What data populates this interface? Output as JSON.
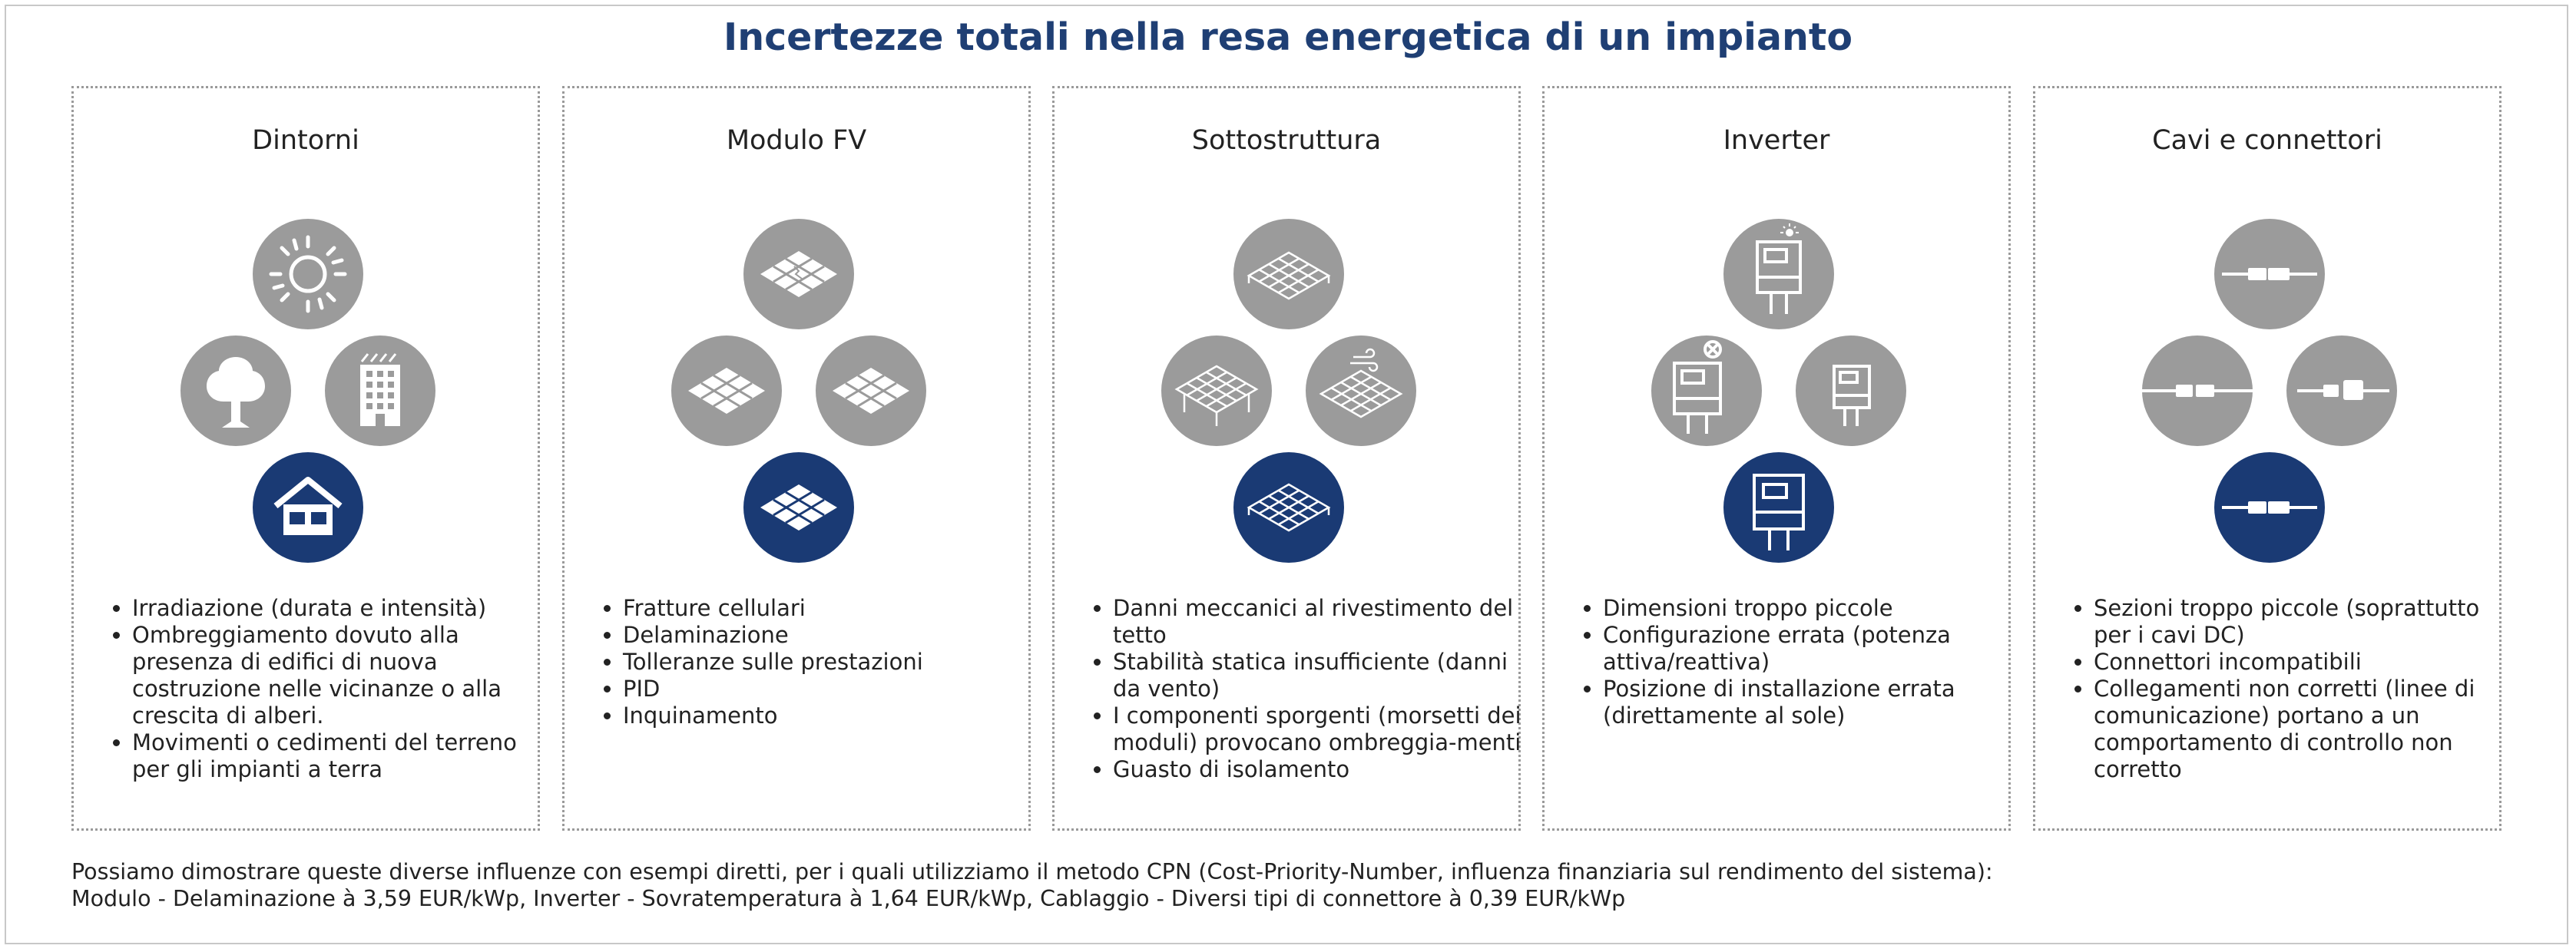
{
  "title": "Incertezze totali nella resa energetica di un impianto",
  "panels": [
    {
      "title": "Dintorni",
      "icons": [
        "sun-icon",
        "tree-icon",
        "building-icon",
        "house-icon"
      ],
      "items": [
        "Irradiazione (durata e intensità)",
        "Ombreggiamento dovuto alla presenza di edifici di nuova costruzione nelle vicinanze o alla crescita di alberi.",
        "Movimenti o cedimenti del terreno per gli impianti a terra"
      ]
    },
    {
      "title": "Modulo FV",
      "icons": [
        "pv-module-fracture-icon",
        "pv-module-delamination-icon",
        "pv-module-tolerance-icon",
        "pv-module-icon"
      ],
      "items": [
        "Fratture cellulari",
        "Delaminazione",
        "Tolleranze sulle prestazioni",
        "PID",
        "Inquinamento"
      ]
    },
    {
      "title": "Sottostruttura",
      "icons": [
        "mounting-structure-roof-icon",
        "mounting-structure-ground-icon",
        "mounting-structure-wind-icon",
        "mounting-structure-icon"
      ],
      "items": [
        "Danni meccanici al rivestimento del tetto",
        "Stabilità statica insufficiente (danni da vento)",
        "I componenti sporgenti (morsetti dei moduli) provocano ombreggia-menti",
        "Guasto di isolamento"
      ]
    },
    {
      "title": "Inverter",
      "icons": [
        "inverter-sun-icon",
        "inverter-error-icon",
        "inverter-small-icon",
        "inverter-icon"
      ],
      "items": [
        "Dimensioni troppo piccole",
        "Configurazione errata (potenza attiva/reattiva)",
        "Posizione di installazione errata (direttamente al sole)"
      ]
    },
    {
      "title": "Cavi e connettori",
      "icons": [
        "connector-icon",
        "connector-mismatch-icon",
        "connector-plug-icon",
        "connector-blue-icon"
      ],
      "items": [
        "Sezioni troppo piccole (soprattutto per i cavi DC)",
        "Connettori incompatibili",
        "Collegamenti non corretti (linee di comunicazione) portano a un comportamento di controllo non corretto"
      ]
    }
  ],
  "footer": {
    "line1": "Possiamo dimostrare queste diverse influenze con esempi diretti, per i quali utilizziamo il metodo CPN (Cost-Priority-Number, influenza finanziaria sul rendimento del sistema):",
    "line2": "Modulo - Delaminazione à 3,59 EUR/kWp, Inverter - Sovratemperatura à 1,64 EUR/kWp, Cablaggio - Diversi tipi di connettore à 0,39 EUR/kWp"
  },
  "colors": {
    "title": "#1f3f74",
    "accent": "#1a3a74",
    "icon_gray": "#9b9b9b"
  }
}
